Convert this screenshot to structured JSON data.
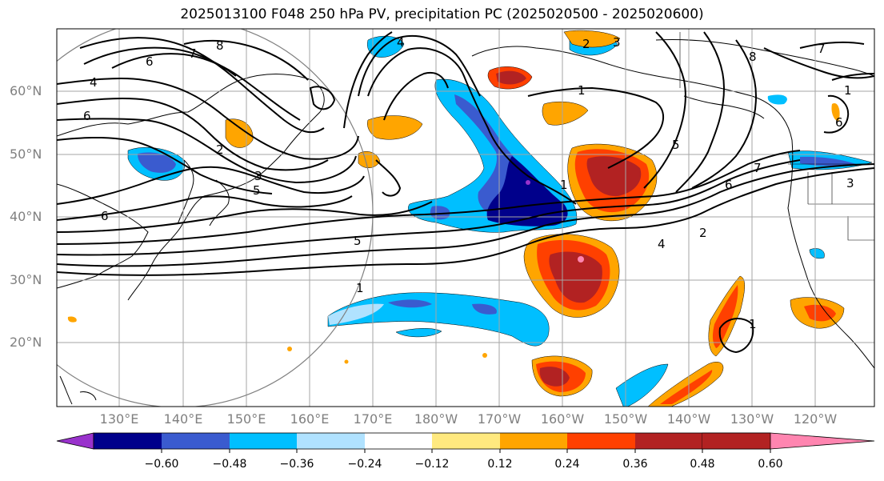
{
  "title": "2025013100 F048 250 hPa PV, precipitation PC (2025020500 - 2025020600)",
  "lat_labels": [
    "60°N",
    "50°N",
    "40°N",
    "30°N",
    "20°N"
  ],
  "lon_labels": [
    "130°E",
    "140°E",
    "150°E",
    "160°E",
    "170°E",
    "180°W",
    "170°W",
    "160°W",
    "150°W",
    "140°W",
    "130°W",
    "120°W"
  ],
  "colorbar": {
    "colors": [
      "#9932CC",
      "#00008B",
      "#3A5BCF",
      "#00BFFF",
      "#B0E2FF",
      "#FFFFFF",
      "#FFE97F",
      "#FFA500",
      "#FF4000",
      "#B22222",
      "#FF85B0"
    ],
    "labels": [
      "−0.60",
      "−0.48",
      "−0.36",
      "−0.24",
      "−0.12",
      "0.12",
      "0.24",
      "0.36",
      "0.48",
      "0.60"
    ]
  },
  "contour_labels": [
    "8",
    "7",
    "6",
    "4",
    "6",
    "2",
    "3",
    "5",
    "6",
    "5",
    "1",
    "4",
    "2",
    "3",
    "1",
    "5",
    "6",
    "7",
    "8",
    "7",
    "6",
    "3",
    "1",
    "2",
    "4",
    "1",
    "1"
  ]
}
